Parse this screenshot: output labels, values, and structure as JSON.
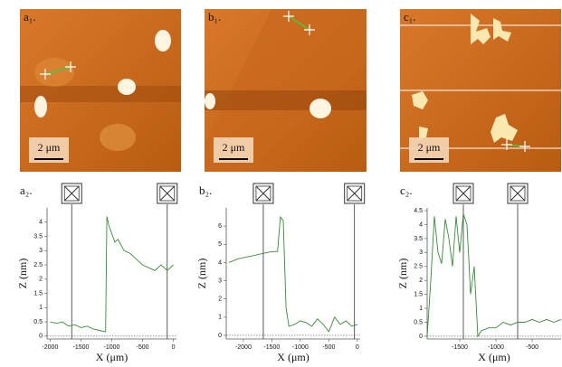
{
  "images": [
    {
      "label": "a₁.",
      "scale_bar": "2 μm"
    },
    {
      "label": "b₁.",
      "scale_bar": "2 μm"
    },
    {
      "label": "c₁.",
      "scale_bar": "2 μm"
    }
  ],
  "chart_data": [
    {
      "type": "line",
      "label": "a₂.",
      "xlabel": "X (μm)",
      "ylabel": "Z (nm)",
      "xlim": [
        -2050,
        50
      ],
      "ylim": [
        -0.1,
        4.5
      ],
      "xticks": [
        -2000,
        -1500,
        -1000,
        -500,
        0
      ],
      "yticks": [
        0,
        0.5,
        1,
        1.5,
        2,
        2.5,
        3,
        3.5,
        4
      ],
      "cursors": [
        -1650,
        -100
      ],
      "series": [
        {
          "color": "#3a8a3a",
          "x": [
            -2000,
            -1900,
            -1800,
            -1700,
            -1600,
            -1500,
            -1400,
            -1300,
            -1200,
            -1100,
            -1080,
            -1050,
            -1000,
            -950,
            -900,
            -850,
            -800,
            -700,
            -600,
            -500,
            -400,
            -300,
            -200,
            -100,
            0
          ],
          "values": [
            0.5,
            0.45,
            0.5,
            0.35,
            0.4,
            0.3,
            0.35,
            0.25,
            0.2,
            0.15,
            4.2,
            3.9,
            3.6,
            3.3,
            3.4,
            3.2,
            3.0,
            2.9,
            2.7,
            2.5,
            2.4,
            2.3,
            2.5,
            2.3,
            2.5
          ]
        }
      ]
    },
    {
      "type": "line",
      "label": "b₂.",
      "xlabel": "X (μm)",
      "ylabel": "Z (nm)",
      "xlim": [
        -2300,
        50
      ],
      "ylim": [
        -0.2,
        7
      ],
      "xticks": [
        -2000,
        -1500,
        -1000,
        -500,
        0
      ],
      "yticks": [
        0,
        1,
        2,
        3,
        4,
        5,
        6
      ],
      "cursors": [
        -1650,
        -50
      ],
      "series": [
        {
          "color": "#3a8a3a",
          "x": [
            -2250,
            -2100,
            -1950,
            -1800,
            -1650,
            -1500,
            -1400,
            -1350,
            -1300,
            -1250,
            -1200,
            -1100,
            -1000,
            -900,
            -800,
            -700,
            -600,
            -500,
            -400,
            -300,
            -200,
            -100,
            0
          ],
          "values": [
            4.0,
            4.2,
            4.3,
            4.4,
            4.5,
            4.6,
            4.6,
            6.5,
            6.3,
            1.5,
            0.5,
            0.6,
            0.8,
            0.7,
            0.5,
            0.9,
            0.6,
            0.2,
            1.0,
            0.6,
            0.8,
            0.5,
            0.6
          ]
        }
      ]
    },
    {
      "type": "line",
      "label": "c₂.",
      "xlabel": "X (μm)",
      "ylabel": "Z (nm)",
      "xlim": [
        -1950,
        -100
      ],
      "ylim": [
        -0.1,
        4.6
      ],
      "xticks": [
        -1500,
        -1000,
        -500
      ],
      "yticks": [
        0,
        0.5,
        1,
        1.5,
        2,
        2.5,
        3,
        3.5,
        4,
        4.5
      ],
      "cursors": [
        -1450,
        -700
      ],
      "series": [
        {
          "color": "#3a8a3a",
          "x": [
            -1950,
            -1900,
            -1850,
            -1800,
            -1750,
            -1700,
            -1650,
            -1600,
            -1550,
            -1500,
            -1450,
            -1400,
            -1350,
            -1300,
            -1250,
            -1200,
            -1100,
            -1000,
            -900,
            -800,
            -700,
            -600,
            -500,
            -400,
            -300,
            -200,
            -100
          ],
          "values": [
            0,
            2.0,
            4.3,
            3.0,
            2.6,
            4.2,
            3.5,
            2.5,
            4.3,
            3.0,
            4.4,
            4.0,
            1.5,
            2.5,
            0,
            0.2,
            0.3,
            0.3,
            0.5,
            0.4,
            0.5,
            0.5,
            0.6,
            0.5,
            0.6,
            0.5,
            0.6
          ]
        }
      ]
    }
  ]
}
